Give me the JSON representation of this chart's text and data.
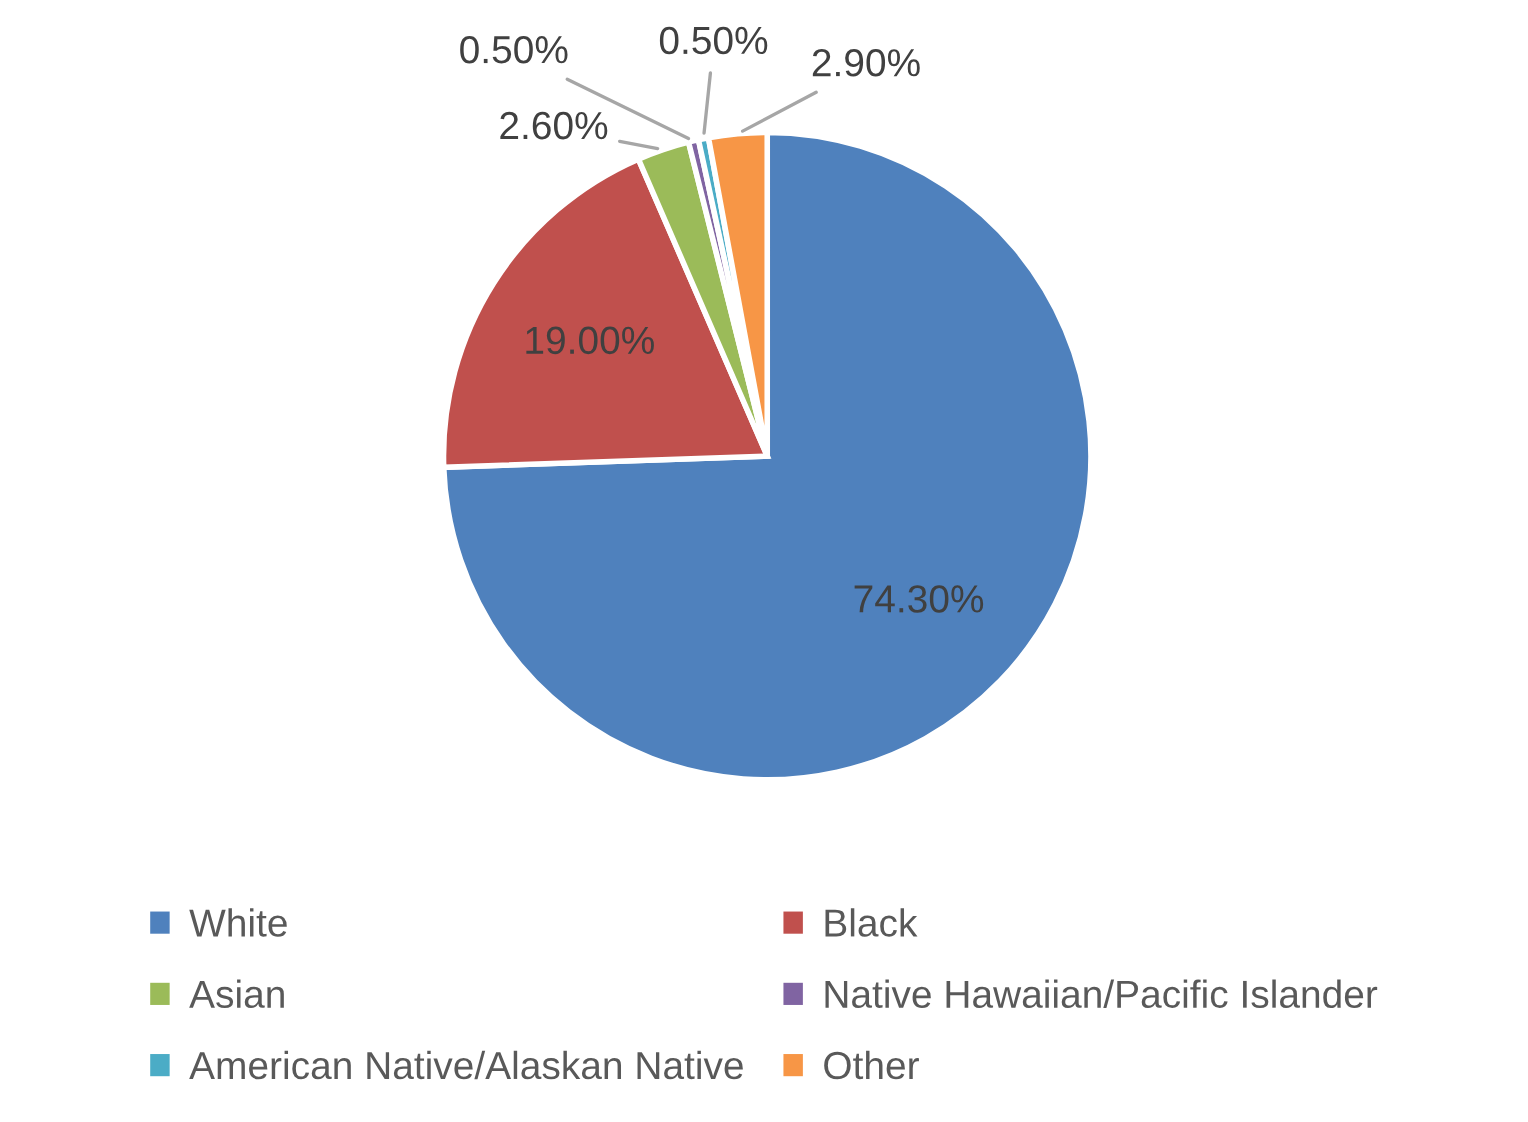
{
  "chart_data": {
    "type": "pie",
    "categories": [
      "White",
      "Black",
      "Asian",
      "Native Hawaiian/Pacific Islander",
      "American Native/Alaskan Native",
      "Other"
    ],
    "values": [
      74.3,
      19.0,
      2.6,
      0.5,
      0.5,
      2.9
    ],
    "value_labels": [
      "74.30%",
      "19.00%",
      "2.60%",
      "0.50%",
      "0.50%",
      "2.90%"
    ],
    "colors": [
      "#4f81bd",
      "#c0504d",
      "#9bbb59",
      "#8064a2",
      "#4bacc6",
      "#f79646"
    ],
    "legend": "bottom"
  }
}
